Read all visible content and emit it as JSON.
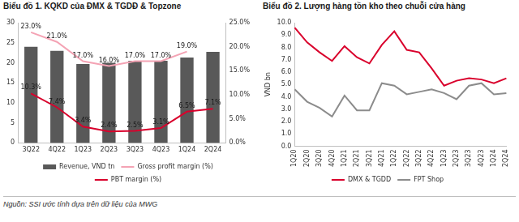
{
  "chart_data": [
    {
      "type": "bar",
      "title": "Biểu đồ 1. KQKD của ĐMX & TGDĐ & Topzone",
      "categories": [
        "3Q22",
        "4Q22",
        "1Q23",
        "2Q23",
        "3Q23",
        "4Q23",
        "1Q24",
        "2Q24"
      ],
      "series": [
        {
          "name": "Revenue, VND tn",
          "type": "bar",
          "color": "#595959",
          "values": [
            24.0,
            23.0,
            19.7,
            20.0,
            20.5,
            20.5,
            21.3,
            22.7
          ]
        },
        {
          "name": "Gross profit margin (%)",
          "type": "line",
          "axis": "y2",
          "color": "#f4a3b4",
          "data_labels": true,
          "values": [
            23.0,
            21.0,
            17.0,
            16.0,
            17.0,
            17.0,
            19.0,
            null
          ],
          "value_labels": [
            "23.0%",
            "21.0%",
            "17.0%",
            "16.0%",
            "17.0%",
            "17.0%",
            "19.0%",
            null
          ]
        },
        {
          "name": "PBT margin (%)",
          "type": "line",
          "axis": "y2",
          "color": "#d9002c",
          "data_labels": true,
          "values": [
            10.3,
            7.4,
            3.4,
            2.4,
            2.5,
            3.1,
            6.5,
            7.1
          ],
          "value_labels": [
            "10.3%",
            "7.4%",
            "3.4%",
            "2.4%",
            "2.5%",
            "3.1%",
            "6.5%",
            "7.1%"
          ]
        }
      ],
      "ylim": [
        0,
        30
      ],
      "yticks": [
        0,
        5,
        10,
        15,
        20,
        25,
        30
      ],
      "y2lim": [
        0,
        25
      ],
      "y2ticks": [
        {
          "value": 0,
          "label": "0.0%"
        },
        {
          "value": 5,
          "label": "5.0%"
        },
        {
          "value": 10,
          "label": "10.0%"
        },
        {
          "value": 15,
          "label": "15.0%"
        },
        {
          "value": 20,
          "label": "20.0%"
        },
        {
          "value": 25,
          "label": "25.0%"
        }
      ],
      "grid": false,
      "legend": "bottom"
    },
    {
      "type": "line",
      "title": "Biểu đồ 2. Lượng hàng tồn kho theo chuỗi cửa hàng",
      "ylabel": "VND bn",
      "categories": [
        "1Q20",
        "2Q20",
        "3Q20",
        "4Q20",
        "1Q21",
        "2Q21",
        "3Q21",
        "4Q21",
        "1Q22",
        "2Q22",
        "3Q22",
        "4Q22",
        "1Q23",
        "2Q23",
        "3Q23",
        "4Q23",
        "1Q24",
        "2Q24"
      ],
      "series": [
        {
          "name": "DMX & TGDD",
          "color": "#d9002c",
          "values": [
            9.6,
            8.4,
            7.6,
            6.9,
            8.1,
            7.2,
            6.7,
            8.2,
            9.3,
            7.8,
            7.6,
            6.3,
            4.9,
            5.3,
            5.5,
            5.4,
            5.1,
            5.5
          ]
        },
        {
          "name": "FPT Shop",
          "color": "#8c8c8c",
          "values": [
            4.6,
            3.6,
            3.1,
            2.4,
            4.1,
            2.9,
            2.9,
            5.1,
            4.9,
            4.2,
            4.4,
            4.6,
            4.3,
            3.8,
            4.9,
            5.1,
            4.2,
            4.3
          ]
        }
      ],
      "ylim": [
        0,
        10
      ],
      "yticks": [
        {
          "value": 0,
          "label": "0.0"
        },
        {
          "value": 1,
          "label": "1.0"
        },
        {
          "value": 2,
          "label": "2.0"
        },
        {
          "value": 3,
          "label": "3.0"
        },
        {
          "value": 4,
          "label": "4.0"
        },
        {
          "value": 5,
          "label": "5.0"
        },
        {
          "value": 6,
          "label": "6.0"
        },
        {
          "value": 7,
          "label": "7.0"
        },
        {
          "value": 8,
          "label": "8.0"
        },
        {
          "value": 9,
          "label": "9.0"
        },
        {
          "value": 10,
          "label": "10.0"
        }
      ],
      "grid": false,
      "legend": "bottom"
    }
  ],
  "source": "Nguồn: SSI ước tính dựa trên dữ liệu của MWG"
}
